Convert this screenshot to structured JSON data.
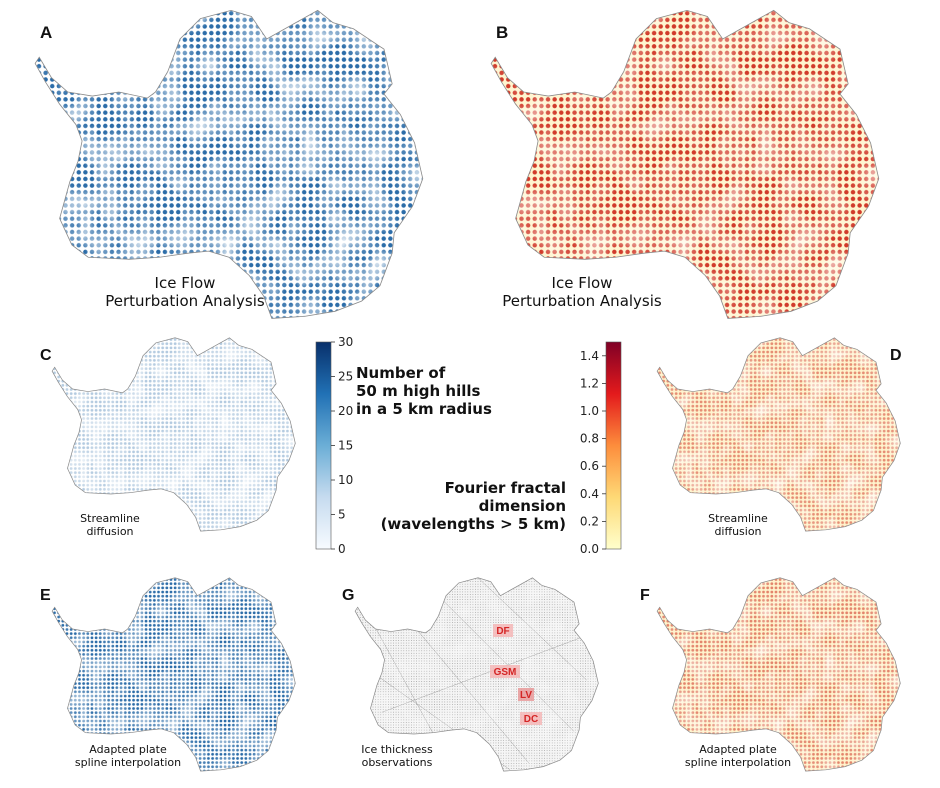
{
  "panels": [
    {
      "letter": "A",
      "caption": [
        "Ice Flow",
        "Perturbation Analysis"
      ],
      "palette": "blues"
    },
    {
      "letter": "B",
      "caption": [
        "Ice Flow",
        "Perturbation Analysis"
      ],
      "palette": "ylorrd"
    },
    {
      "letter": "C",
      "caption": [
        "Streamline",
        "diffusion"
      ],
      "palette": "blues"
    },
    {
      "letter": "D",
      "caption": [
        "Streamline",
        "diffusion"
      ],
      "palette": "ylorrd"
    },
    {
      "letter": "E",
      "caption": [
        "Adapted plate",
        "spline interpolation"
      ],
      "palette": "blues"
    },
    {
      "letter": "G",
      "caption": [
        "Ice thickness",
        "observations"
      ],
      "palette": "grays"
    },
    {
      "letter": "F",
      "caption": [
        "Adapted plate",
        "spline interpolation"
      ],
      "palette": "ylorrd"
    }
  ],
  "colorbars": {
    "hills": {
      "label": [
        "Number of",
        "50 m high hills",
        "in a 5 km radius"
      ],
      "ticks": [
        "0",
        "5",
        "10",
        "15",
        "20",
        "25",
        "30"
      ],
      "range": [
        0,
        30
      ],
      "colors": [
        "#f7fbff",
        "#c6dbef",
        "#6baed6",
        "#2171b5",
        "#08306b"
      ]
    },
    "fractal": {
      "label": [
        "Fourier fractal",
        "dimension",
        "(wavelengths > 5 km)"
      ],
      "ticks": [
        "0.0",
        "0.2",
        "0.4",
        "0.6",
        "0.8",
        "1.0",
        "1.2",
        "1.4"
      ],
      "range": [
        0,
        1.5
      ],
      "colors": [
        "#ffffcc",
        "#fed976",
        "#fd8d3c",
        "#e31a1c",
        "#800026"
      ]
    }
  },
  "sites": [
    "DF",
    "GSM",
    "LV",
    "DC"
  ]
}
